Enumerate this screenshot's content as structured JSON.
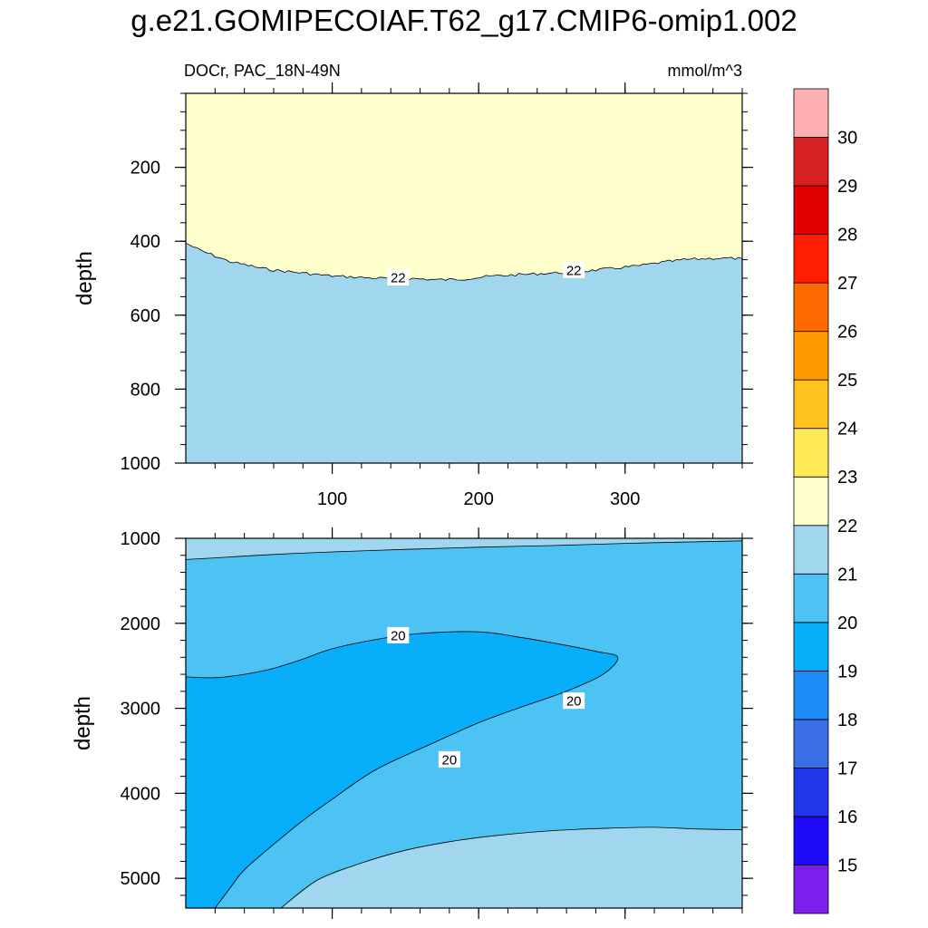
{
  "title": "g.e21.GOMIPECOIAF.T62_g17.CMIP6-omip1.002",
  "chart_data": [
    {
      "type": "contour",
      "panel": "upper",
      "left_label": "DOCr, PAC_18N-49N",
      "right_label": "mmol/m^3",
      "ylabel": "depth",
      "xlabel": "",
      "xlim": [
        0,
        380
      ],
      "ylim": [
        0,
        1000
      ],
      "y_inverted": true,
      "x_ticks": [
        "100",
        "200",
        "300"
      ],
      "y_ticks": [
        "200",
        "400",
        "600",
        "800",
        "1000"
      ],
      "boundary_22": {
        "x": [
          0,
          10,
          20,
          30,
          40,
          50,
          60,
          70,
          80,
          90,
          100,
          110,
          120,
          130,
          140,
          150,
          160,
          170,
          180,
          190,
          200,
          210,
          220,
          230,
          240,
          250,
          260,
          270,
          280,
          290,
          300,
          310,
          320,
          330,
          340,
          350,
          360,
          370,
          380
        ],
        "depth": [
          405,
          425,
          440,
          455,
          463,
          472,
          478,
          482,
          486,
          490,
          494,
          496,
          498,
          500,
          500,
          500,
          502,
          504,
          504,
          502,
          498,
          494,
          492,
          490,
          488,
          486,
          484,
          482,
          478,
          474,
          470,
          466,
          460,
          455,
          450,
          448,
          446,
          446,
          447
        ]
      },
      "contour_labels": [
        {
          "text": "22",
          "x": 145,
          "depth": 500
        },
        {
          "text": "22",
          "x": 265,
          "depth": 480
        }
      ],
      "regions": [
        {
          "range": "22-23",
          "location": "above boundary"
        },
        {
          "range": "21-22",
          "location": "below boundary"
        }
      ]
    },
    {
      "type": "contour",
      "panel": "lower",
      "ylabel": "depth",
      "xlim": [
        0,
        380
      ],
      "ylim": [
        1000,
        5350
      ],
      "y_inverted": true,
      "y_ticks": [
        "1000",
        "2000",
        "3000",
        "4000",
        "5000"
      ],
      "contours": [
        {
          "name": "21_upper",
          "x": [
            0,
            20,
            60,
            100,
            150,
            200,
            250,
            300,
            350,
            380
          ],
          "depth": [
            1250,
            1230,
            1190,
            1160,
            1130,
            1105,
            1085,
            1060,
            1040,
            1030
          ]
        },
        {
          "name": "20_tongue",
          "x": [
            0,
            20,
            40,
            60,
            80,
            100,
            130,
            160,
            200,
            230,
            260,
            280,
            295,
            285,
            260,
            230,
            200,
            170,
            130,
            100,
            80,
            60,
            40,
            30,
            20
          ],
          "depth": [
            2630,
            2640,
            2600,
            2530,
            2420,
            2300,
            2190,
            2120,
            2100,
            2170,
            2260,
            2330,
            2400,
            2600,
            2800,
            2980,
            3170,
            3400,
            3720,
            4070,
            4320,
            4600,
            4900,
            5120,
            5350
          ]
        },
        {
          "name": "21_lower",
          "x": [
            65,
            90,
            120,
            150,
            180,
            210,
            250,
            290,
            320,
            350,
            380
          ],
          "depth": [
            5350,
            5020,
            4820,
            4670,
            4570,
            4500,
            4440,
            4410,
            4400,
            4420,
            4430
          ]
        }
      ],
      "contour_labels": [
        {
          "text": "20",
          "x": 145,
          "depth": 2140
        },
        {
          "text": "20",
          "x": 265,
          "depth": 2910
        },
        {
          "text": "20",
          "x": 180,
          "depth": 3600
        }
      ],
      "regions": [
        {
          "range": "21-22",
          "location": "top and bottom-right"
        },
        {
          "range": "20-21",
          "location": "middle band"
        },
        {
          "range": "19-20",
          "location": "tongue"
        }
      ]
    }
  ],
  "colorbar": {
    "labels": [
      "15",
      "16",
      "17",
      "18",
      "19",
      "20",
      "21",
      "22",
      "23",
      "24",
      "25",
      "26",
      "27",
      "28",
      "29",
      "30"
    ],
    "colors": [
      "#7E1EEC",
      "#1E0AF5",
      "#2236E8",
      "#3A6FE6",
      "#1E8CF6",
      "#08AEFA",
      "#4DC3F4",
      "#A0D6EE",
      "#FFFFCC",
      "#FFE955",
      "#FFC21E",
      "#FF9900",
      "#FF6A00",
      "#FF1E00",
      "#E00000",
      "#D62222",
      "#FFB1B1"
    ]
  }
}
